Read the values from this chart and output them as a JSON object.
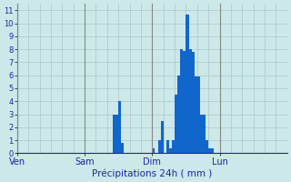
{
  "title": "Précipitations 24h ( mm )",
  "background_color": "#cce8e8",
  "bar_color": "#1166cc",
  "grid_color": "#aac8c8",
  "vline_color": "#888888",
  "axis_label_color": "#2222aa",
  "tick_color": "#2222aa",
  "ylim": [
    0,
    11.5
  ],
  "yticks": [
    0,
    1,
    2,
    3,
    4,
    5,
    6,
    7,
    8,
    9,
    10,
    11
  ],
  "day_labels": [
    "Ven",
    "Sam",
    "Dim",
    "Lun"
  ],
  "day_positions": [
    0,
    24,
    48,
    72
  ],
  "num_bars": 96,
  "bar_values": [
    0,
    0,
    0,
    0,
    0,
    0,
    0,
    0,
    0,
    0,
    0,
    0,
    0,
    0,
    0,
    0,
    0,
    0,
    0,
    0,
    0,
    0,
    0,
    0,
    0,
    0,
    0,
    0,
    0,
    0,
    0,
    0,
    0,
    0,
    3.0,
    3.0,
    4.0,
    0.8,
    0,
    0,
    0,
    0,
    0,
    0,
    0,
    0,
    0,
    0,
    0.4,
    0,
    1.0,
    2.5,
    0,
    1.0,
    0.4,
    1.0,
    4.5,
    6.0,
    8.0,
    7.9,
    10.7,
    8.0,
    7.8,
    5.9,
    5.9,
    3.0,
    3.0,
    1.0,
    0.4,
    0.4,
    0,
    0,
    0,
    0,
    0,
    0,
    0,
    0,
    0,
    0,
    0,
    0,
    0,
    0,
    0,
    0,
    0,
    0,
    0,
    0,
    0,
    0,
    0,
    0,
    0,
    0
  ]
}
